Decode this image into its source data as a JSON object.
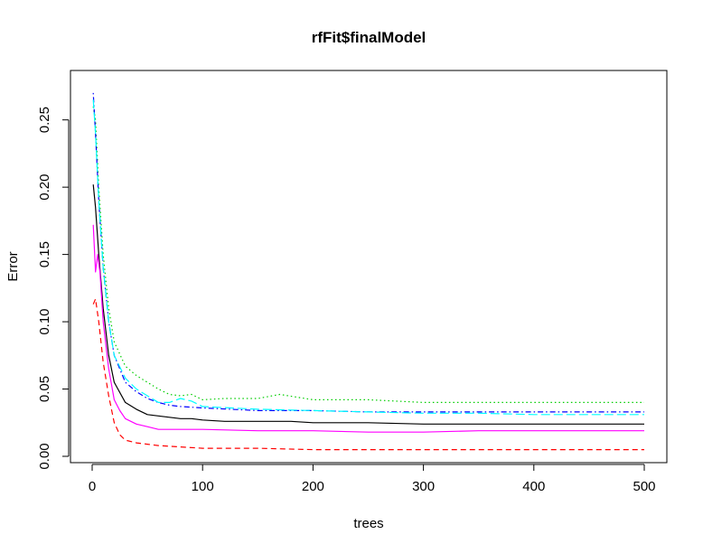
{
  "chart_data": {
    "type": "line",
    "title": "rfFit$finalModel",
    "xlabel": "trees",
    "ylabel": "Error",
    "xlim": [
      0,
      500
    ],
    "ylim": [
      0,
      0.28
    ],
    "xticks": [
      0,
      100,
      200,
      300,
      400,
      500
    ],
    "yticks": [
      0.0,
      0.05,
      0.1,
      0.15,
      0.2,
      0.25
    ],
    "ytick_labels": [
      "0.00",
      "0.05",
      "0.10",
      "0.15",
      "0.20",
      "0.25"
    ],
    "grid": false,
    "legend": "none",
    "series": [
      {
        "color": "#000000",
        "dash": "solid",
        "x": [
          1,
          3,
          6,
          10,
          15,
          20,
          30,
          40,
          50,
          60,
          70,
          80,
          90,
          100,
          120,
          150,
          180,
          200,
          250,
          300,
          350,
          400,
          450,
          500
        ],
        "y": [
          0.202,
          0.185,
          0.15,
          0.11,
          0.075,
          0.055,
          0.04,
          0.035,
          0.031,
          0.03,
          0.029,
          0.028,
          0.028,
          0.027,
          0.026,
          0.026,
          0.026,
          0.025,
          0.025,
          0.024,
          0.024,
          0.024,
          0.024,
          0.024
        ]
      },
      {
        "color": "#ff0000",
        "dash": "dashed",
        "x": [
          1,
          3,
          6,
          10,
          15,
          20,
          25,
          30,
          40,
          50,
          60,
          80,
          100,
          150,
          200,
          250,
          300,
          350,
          400,
          450,
          500
        ],
        "y": [
          0.113,
          0.117,
          0.1,
          0.07,
          0.045,
          0.025,
          0.016,
          0.012,
          0.01,
          0.009,
          0.008,
          0.007,
          0.006,
          0.006,
          0.005,
          0.005,
          0.005,
          0.005,
          0.005,
          0.005,
          0.005
        ]
      },
      {
        "color": "#00cd00",
        "dash": "dotted",
        "x": [
          1,
          3,
          6,
          10,
          15,
          20,
          30,
          40,
          50,
          60,
          70,
          80,
          90,
          100,
          120,
          150,
          170,
          200,
          250,
          300,
          350,
          400,
          450,
          500
        ],
        "y": [
          0.26,
          0.25,
          0.2,
          0.15,
          0.11,
          0.085,
          0.067,
          0.06,
          0.055,
          0.05,
          0.046,
          0.045,
          0.046,
          0.042,
          0.043,
          0.043,
          0.046,
          0.042,
          0.042,
          0.04,
          0.04,
          0.04,
          0.04,
          0.04
        ]
      },
      {
        "color": "#0000ff",
        "dash": "dotdash",
        "x": [
          1,
          3,
          6,
          10,
          15,
          20,
          30,
          40,
          50,
          60,
          70,
          80,
          100,
          150,
          200,
          250,
          300,
          350,
          400,
          450,
          500
        ],
        "y": [
          0.27,
          0.24,
          0.19,
          0.14,
          0.1,
          0.075,
          0.055,
          0.048,
          0.043,
          0.04,
          0.038,
          0.037,
          0.036,
          0.034,
          0.034,
          0.033,
          0.033,
          0.033,
          0.033,
          0.033,
          0.033
        ]
      },
      {
        "color": "#00ffff",
        "dash": "longdash",
        "x": [
          1,
          3,
          6,
          10,
          15,
          20,
          30,
          40,
          50,
          60,
          70,
          80,
          90,
          100,
          150,
          200,
          250,
          300,
          350,
          400,
          450,
          500
        ],
        "y": [
          0.265,
          0.24,
          0.19,
          0.14,
          0.1,
          0.075,
          0.058,
          0.05,
          0.045,
          0.04,
          0.04,
          0.043,
          0.041,
          0.037,
          0.035,
          0.034,
          0.033,
          0.032,
          0.032,
          0.031,
          0.031,
          0.031
        ]
      },
      {
        "color": "#ff00ff",
        "dash": "solid",
        "x": [
          1,
          3,
          5,
          7,
          10,
          15,
          20,
          25,
          30,
          40,
          50,
          60,
          70,
          80,
          100,
          150,
          200,
          250,
          300,
          350,
          400,
          450,
          500
        ],
        "y": [
          0.172,
          0.137,
          0.15,
          0.137,
          0.1,
          0.065,
          0.042,
          0.034,
          0.028,
          0.024,
          0.022,
          0.02,
          0.02,
          0.02,
          0.02,
          0.019,
          0.019,
          0.018,
          0.018,
          0.019,
          0.019,
          0.019,
          0.019
        ]
      }
    ]
  }
}
